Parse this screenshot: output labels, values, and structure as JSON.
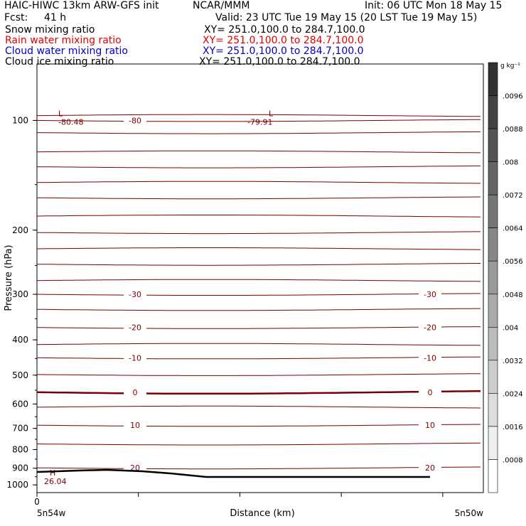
{
  "header": {
    "model": "HAIC-HIWC 13km ARW-GFS init",
    "center": "NCAR/MMM",
    "init": "Init: 06 UTC Mon 18 May 15",
    "fcst_label": "Fcst:",
    "fcst_value": "41 h",
    "valid": "Valid: 23 UTC Tue 19 May 15 (20 LST Tue 19 May 15)"
  },
  "fields": [
    {
      "name": "Snow mixing ratio",
      "xy": "XY= 251.0,100.0 to 284.7,100.0",
      "color": "#000000"
    },
    {
      "name": "Rain water mixing ratio",
      "xy": "XY= 251.0,100.0 to 284.7,100.0",
      "color": "#e00000"
    },
    {
      "name": "Cloud water mixing ratio",
      "xy": "XY= 251.0,100.0 to 284.7,100.0",
      "color": "#0000c0"
    },
    {
      "name": "Cloud ice mixing ratio",
      "xy": "XY= 251.0,100.0 to 284.7,100.0",
      "color": "#000000"
    }
  ],
  "colors": {
    "isotherm": "#7a0000",
    "terrain": "#000000"
  },
  "chart_data": {
    "type": "line",
    "title": "",
    "xlabel": "Distance (km)",
    "ylabel": "Pressure (hPa)",
    "ylim": [
      1050,
      70
    ],
    "y_scale": "log",
    "xlim": [
      0,
      220
    ],
    "x_ticks": [
      "0"
    ],
    "x_endpoint_labels": [
      "5n54w",
      "5n50w"
    ],
    "y_ticks": [
      100,
      200,
      300,
      400,
      500,
      600,
      700,
      800,
      900,
      1000
    ],
    "isotherms": [
      {
        "label": "-80",
        "pressure": 100
      },
      {
        "label": "-30",
        "pressure": 300
      },
      {
        "label": "-20",
        "pressure": 370
      },
      {
        "label": "-10",
        "pressure": 448
      },
      {
        "label": "0",
        "pressure": 557
      },
      {
        "label": "10",
        "pressure": 686
      },
      {
        "label": "20",
        "pressure": 898
      }
    ],
    "extrema": [
      {
        "label": "L",
        "value": "-80.48"
      },
      {
        "label": "L",
        "value": "-79.91"
      },
      {
        "label": "H",
        "value": "26.04"
      }
    ],
    "colorbar": {
      "unit": "g kg⁻¹",
      "ticks": [
        ".0096",
        ".0088",
        ".008",
        ".0072",
        ".0064",
        ".0056",
        ".0048",
        ".004",
        ".0032",
        ".0024",
        ".0016",
        ".0008"
      ]
    }
  }
}
